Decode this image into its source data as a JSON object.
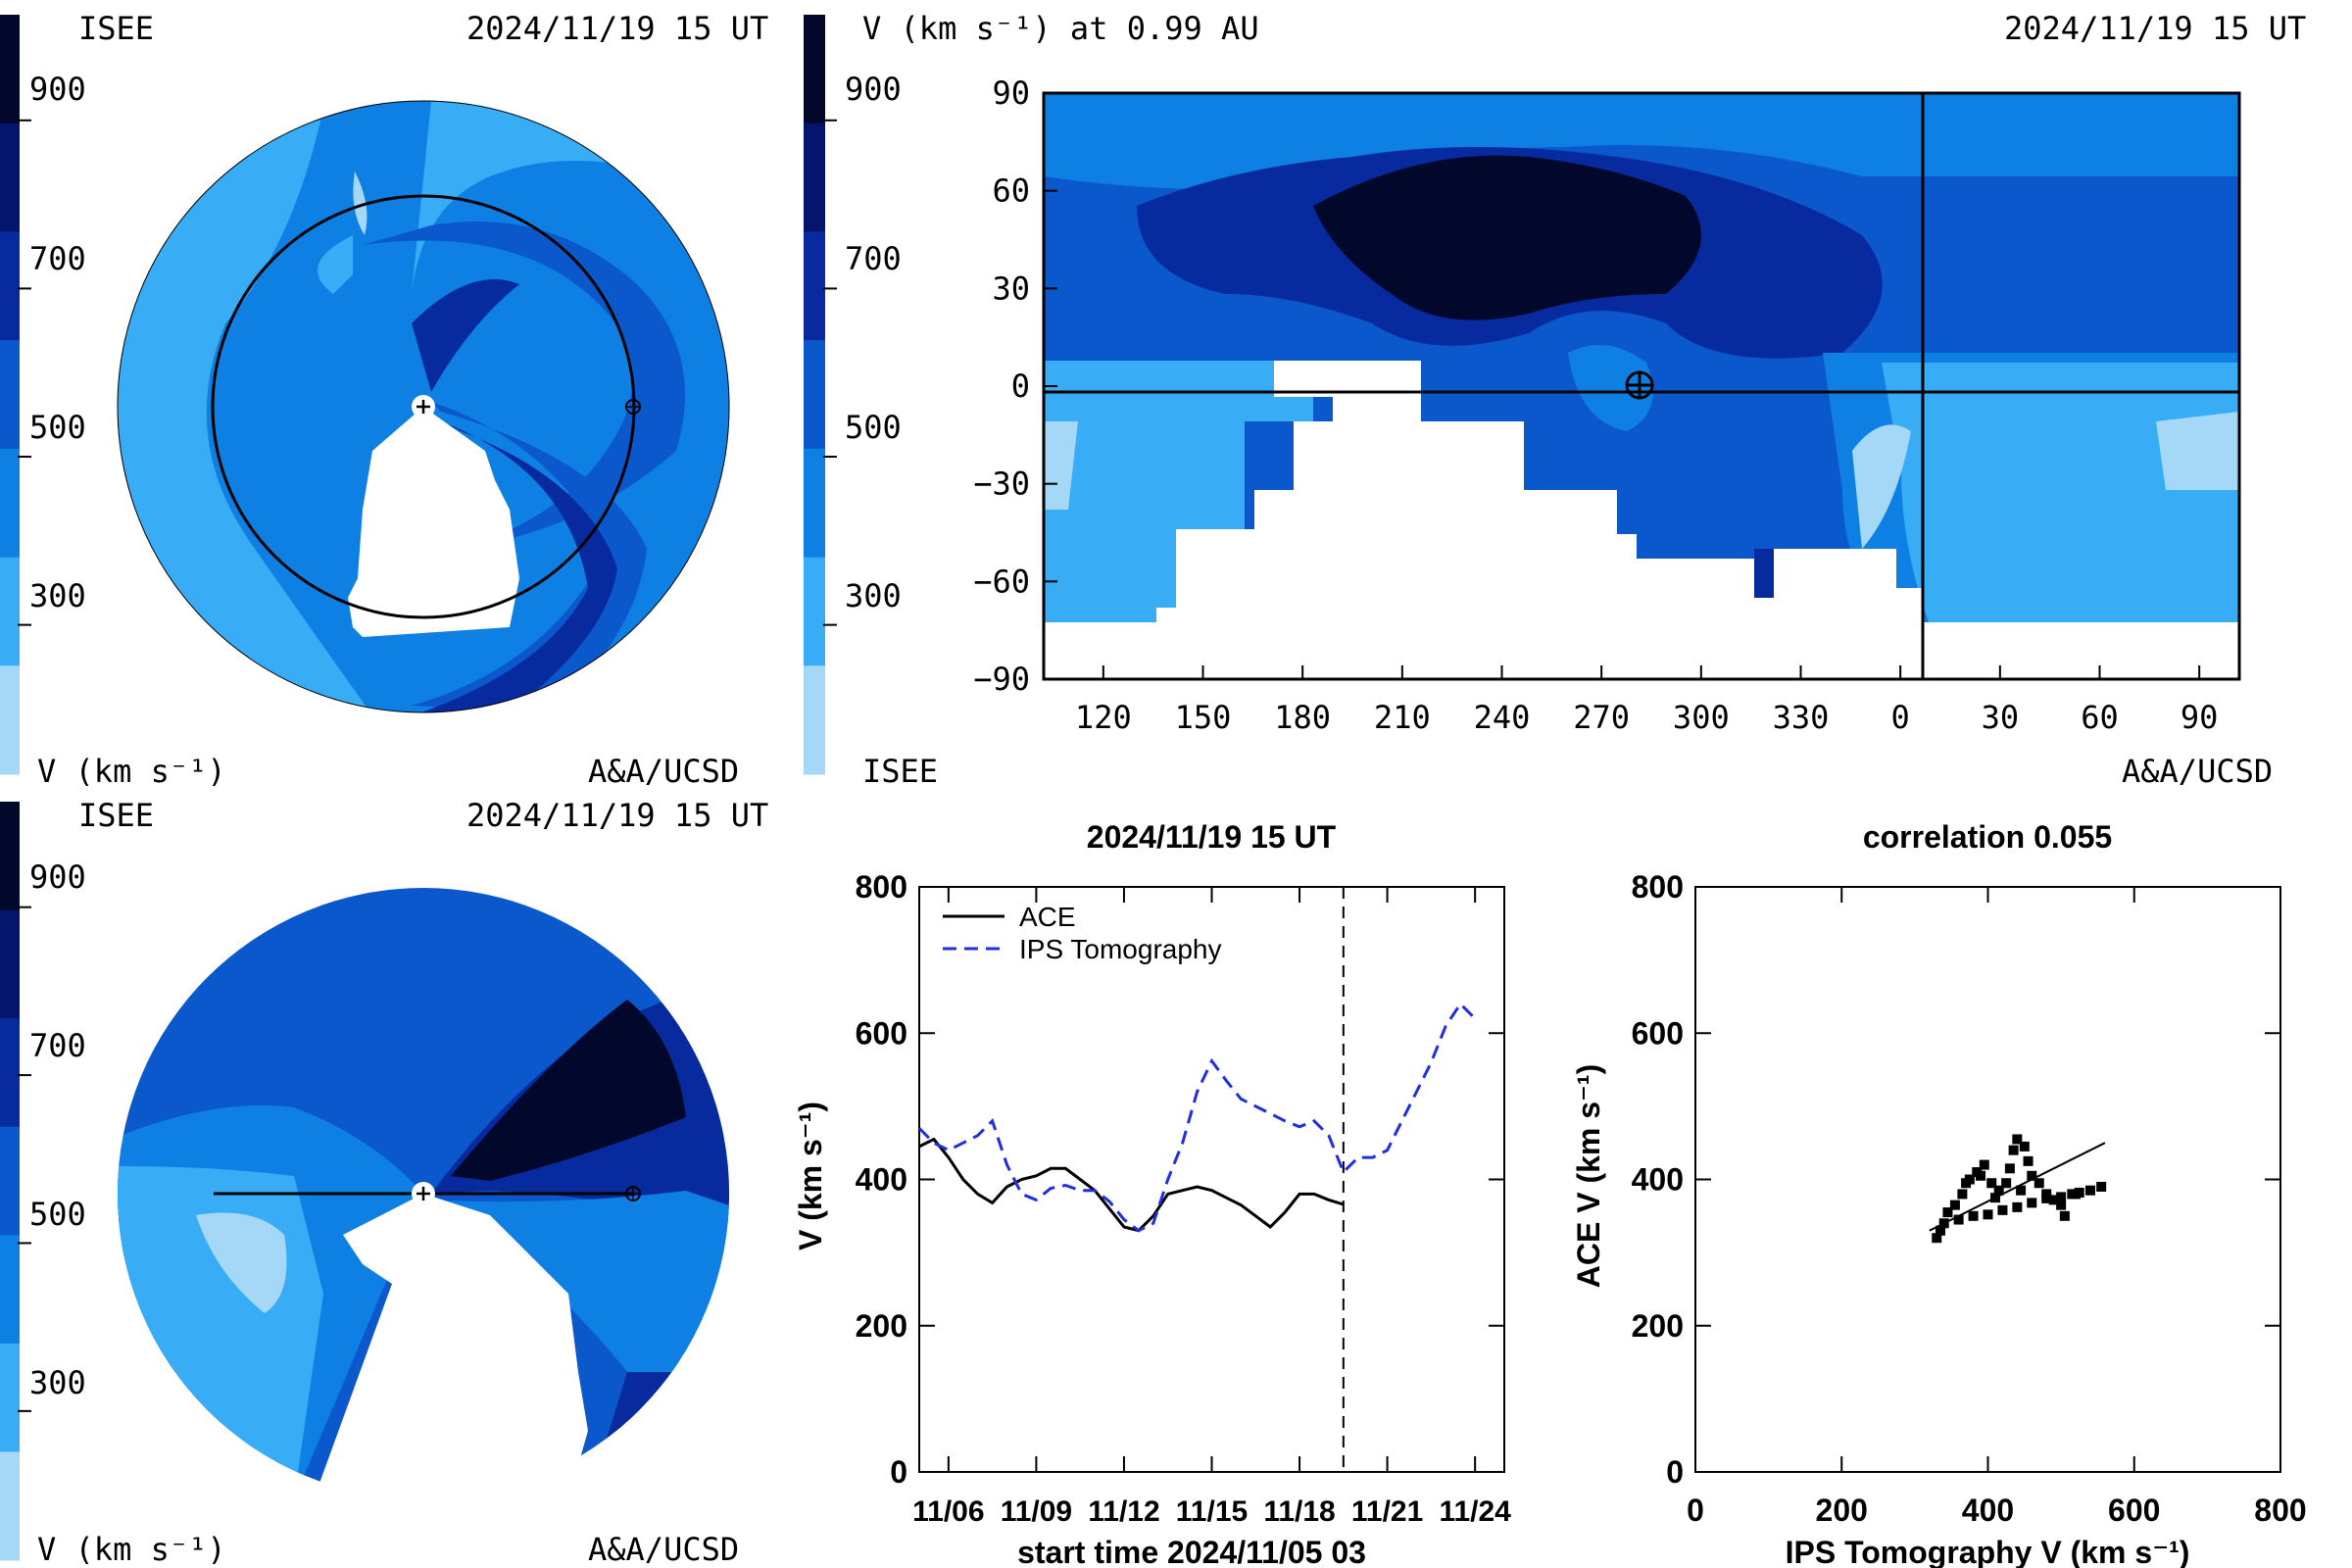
{
  "palette": [
    "#a5d8f7",
    "#38acf5",
    "#0f80e3",
    "#0b58cc",
    "#072b9e",
    "#05156b",
    "#02082c"
  ],
  "colorbar": {
    "label": "V (km s⁻¹)",
    "ticks": [
      "900",
      "700",
      "500",
      "300"
    ]
  },
  "polar_top": {
    "left_label": "ISEE",
    "date": "2024/11/19 15 UT",
    "credit": "A&A/UCSD"
  },
  "polar_bottom": {
    "left_label": "ISEE",
    "date": "2024/11/19 15 UT",
    "credit": "A&A/UCSD"
  },
  "synoptic": {
    "title": "V (km s⁻¹) at 0.99 AU",
    "date": "2024/11/19 15 UT",
    "left_label": "ISEE",
    "credit": "A&A/UCSD",
    "y_ticks": [
      "90",
      "60",
      "30",
      "0",
      "−30",
      "−60",
      "−90"
    ],
    "x_ticks": [
      "120",
      "150",
      "180",
      "210",
      "240",
      "270",
      "300",
      "330",
      "0",
      "30",
      "60",
      "90"
    ],
    "earth_symbol": "⊕"
  },
  "chart_data": [
    {
      "type": "line",
      "title": "2024/11/19 15 UT",
      "xlabel": "start time 2024/11/05 03",
      "ylabel": "V (km s⁻¹)",
      "ylim": [
        0,
        800
      ],
      "xlim_days": [
        0,
        20
      ],
      "x_tick_labels": [
        "11/06",
        "11/09",
        "11/12",
        "11/15",
        "11/18",
        "11/21",
        "11/24"
      ],
      "y_tick_labels": [
        "0",
        "200",
        "400",
        "600",
        "800"
      ],
      "marker_line_day": 14.5,
      "legend": [
        "ACE",
        "IPS Tomography"
      ],
      "legend_placement": "top-left",
      "series": [
        {
          "name": "ACE",
          "x": [
            0.0,
            0.5,
            1.0,
            1.5,
            2.0,
            2.5,
            3.0,
            3.5,
            4.0,
            4.5,
            5.0,
            5.5,
            6.0,
            6.5,
            7.0,
            7.5,
            8.0,
            8.5,
            9.0,
            9.5,
            10.0,
            10.5,
            11.0,
            11.5,
            12.0,
            12.5,
            13.0,
            13.5,
            14.0,
            14.5
          ],
          "y": [
            445,
            455,
            430,
            400,
            380,
            368,
            390,
            400,
            405,
            415,
            415,
            400,
            385,
            360,
            335,
            330,
            350,
            380,
            385,
            390,
            385,
            375,
            365,
            350,
            335,
            355,
            380,
            380,
            372,
            366
          ]
        },
        {
          "name": "IPS Tomography",
          "x": [
            0.0,
            0.5,
            1.0,
            1.5,
            2.0,
            2.5,
            3.0,
            3.5,
            4.0,
            4.5,
            5.0,
            5.5,
            6.0,
            6.5,
            7.0,
            7.5,
            8.0,
            8.5,
            9.0,
            9.5,
            10.0,
            10.5,
            11.0,
            11.5,
            12.0,
            12.5,
            13.0,
            13.5,
            14.0,
            14.5,
            15.0,
            15.5,
            16.0,
            16.5,
            17.0,
            17.5,
            18.0,
            18.5,
            19.0
          ],
          "y": [
            470,
            450,
            440,
            450,
            460,
            480,
            420,
            380,
            372,
            388,
            392,
            385,
            385,
            370,
            345,
            330,
            340,
            400,
            450,
            520,
            562,
            535,
            510,
            500,
            490,
            480,
            472,
            480,
            460,
            410,
            430,
            430,
            440,
            480,
            520,
            560,
            610,
            640,
            620
          ]
        }
      ]
    },
    {
      "type": "scatter",
      "title": "correlation 0.055",
      "xlabel": "IPS Tomography V (km s⁻¹)",
      "ylabel": "ACE V (km s⁻¹)",
      "xlim": [
        0,
        800
      ],
      "ylim": [
        0,
        800
      ],
      "x_tick_labels": [
        "0",
        "200",
        "400",
        "600",
        "800"
      ],
      "y_tick_labels": [
        "0",
        "200",
        "400",
        "600",
        "800"
      ],
      "fit_line": [
        [
          320,
          330
        ],
        [
          560,
          450
        ]
      ],
      "points": [
        {
          "x": 330,
          "y": 320
        },
        {
          "x": 340,
          "y": 340
        },
        {
          "x": 345,
          "y": 355
        },
        {
          "x": 355,
          "y": 365
        },
        {
          "x": 365,
          "y": 380
        },
        {
          "x": 375,
          "y": 400
        },
        {
          "x": 385,
          "y": 410
        },
        {
          "x": 395,
          "y": 420
        },
        {
          "x": 405,
          "y": 395
        },
        {
          "x": 415,
          "y": 385
        },
        {
          "x": 425,
          "y": 395
        },
        {
          "x": 430,
          "y": 415
        },
        {
          "x": 435,
          "y": 440
        },
        {
          "x": 440,
          "y": 455
        },
        {
          "x": 450,
          "y": 445
        },
        {
          "x": 455,
          "y": 425
        },
        {
          "x": 460,
          "y": 405
        },
        {
          "x": 470,
          "y": 395
        },
        {
          "x": 480,
          "y": 380
        },
        {
          "x": 490,
          "y": 372
        },
        {
          "x": 500,
          "y": 365
        },
        {
          "x": 505,
          "y": 350
        },
        {
          "x": 515,
          "y": 380
        },
        {
          "x": 525,
          "y": 382
        },
        {
          "x": 540,
          "y": 385
        },
        {
          "x": 555,
          "y": 390
        },
        {
          "x": 360,
          "y": 345
        },
        {
          "x": 380,
          "y": 350
        },
        {
          "x": 400,
          "y": 352
        },
        {
          "x": 420,
          "y": 358
        },
        {
          "x": 440,
          "y": 362
        },
        {
          "x": 460,
          "y": 368
        },
        {
          "x": 480,
          "y": 374
        },
        {
          "x": 500,
          "y": 376
        },
        {
          "x": 520,
          "y": 380
        },
        {
          "x": 335,
          "y": 330
        },
        {
          "x": 370,
          "y": 395
        },
        {
          "x": 390,
          "y": 405
        },
        {
          "x": 410,
          "y": 375
        },
        {
          "x": 445,
          "y": 385
        }
      ]
    }
  ]
}
